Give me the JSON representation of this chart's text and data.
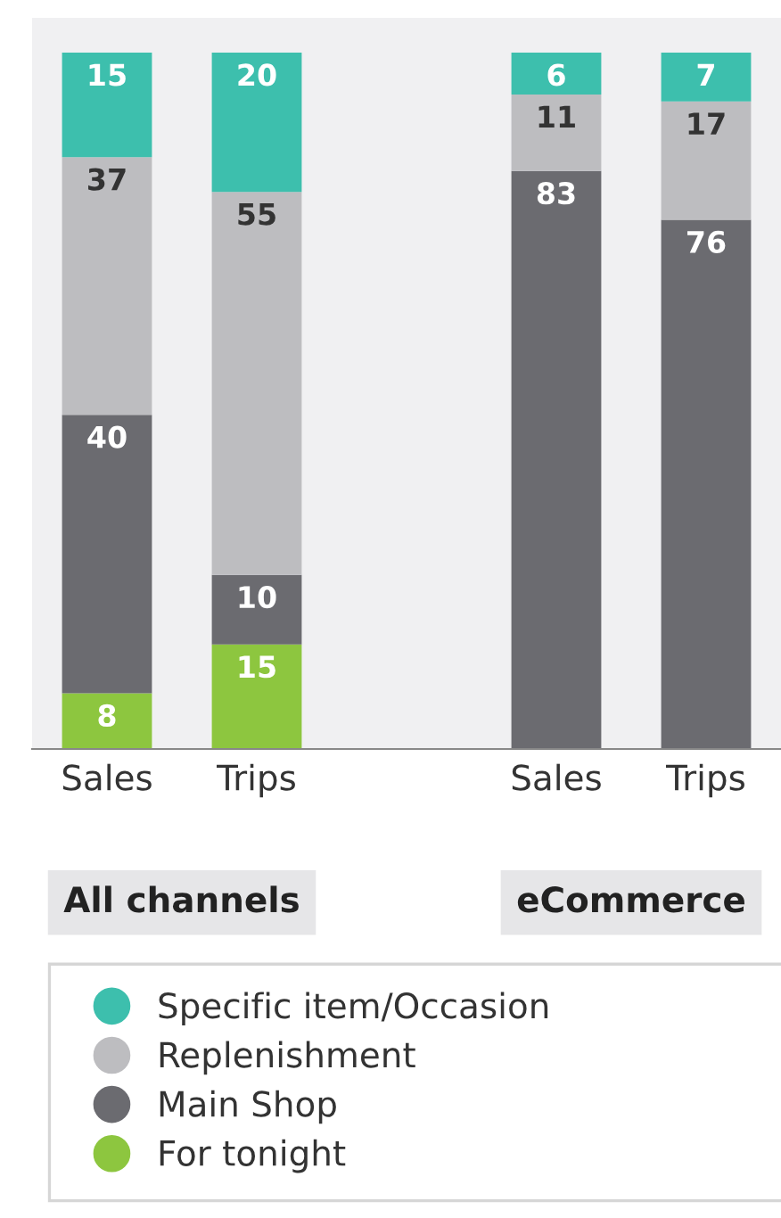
{
  "chart_data": {
    "type": "bar",
    "stacked": true,
    "data_labels": true,
    "legend": "bottom",
    "grid": false,
    "marker": "circle",
    "categories": [
      "Sales",
      "Trips",
      null,
      "Sales",
      "Trips"
    ],
    "series": [
      {
        "name": "For tonight",
        "color": "#8dc63f",
        "values": [
          8,
          15,
          null,
          null,
          null
        ]
      },
      {
        "name": "Main Shop",
        "color": "#6b6b70",
        "values": [
          40,
          10,
          null,
          83,
          76
        ]
      },
      {
        "name": "Replenishment",
        "color": "#bdbdc0",
        "values": [
          37,
          55,
          null,
          11,
          17
        ]
      },
      {
        "name": "Specific item/Occasion",
        "color": "#3dbfad",
        "values": [
          15,
          20,
          null,
          6,
          7
        ]
      }
    ],
    "annotations": [
      "All channels",
      "eCommerce"
    ]
  }
}
